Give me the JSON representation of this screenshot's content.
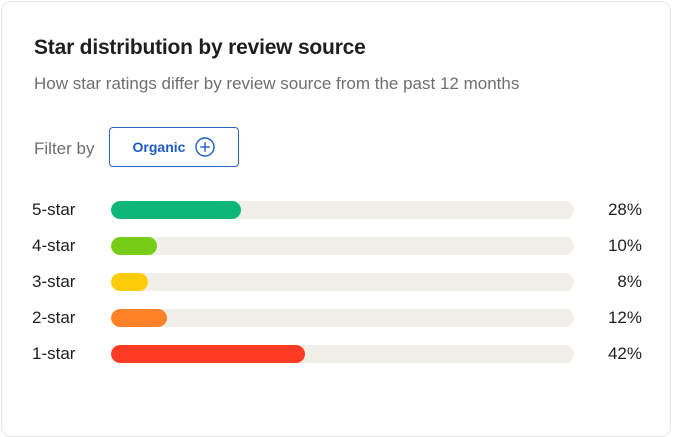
{
  "card": {
    "title": "Star distribution by review source",
    "subtitle": "How star ratings differ by review source from the past 12 months"
  },
  "filter": {
    "label": "Filter by",
    "selected": "Organic",
    "add_icon": "plus-circle-icon"
  },
  "distribution": [
    {
      "label": "5-star",
      "percent_label": "28%",
      "percent": 28,
      "color": "#0fb67a"
    },
    {
      "label": "4-star",
      "percent_label": "10%",
      "percent": 10,
      "color": "#77cc17"
    },
    {
      "label": "3-star",
      "percent_label": "8%",
      "percent": 8,
      "color": "#ffcc0a"
    },
    {
      "label": "2-star",
      "percent_label": "12%",
      "percent": 12,
      "color": "#ff8228"
    },
    {
      "label": "1-star",
      "percent_label": "42%",
      "percent": 42,
      "color": "#ff3b24"
    }
  ]
}
